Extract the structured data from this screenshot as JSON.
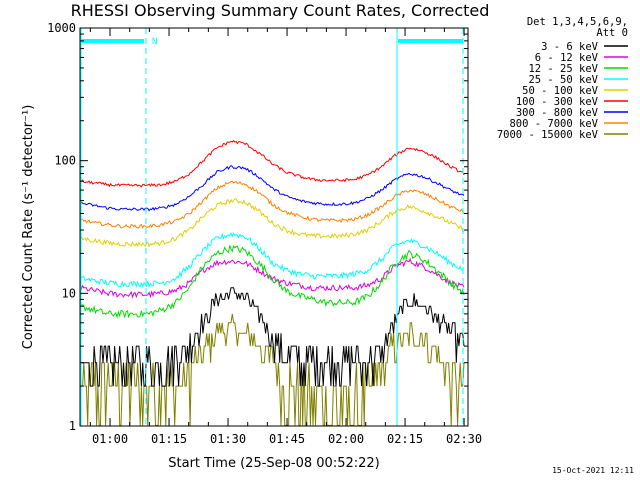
{
  "chart_data": {
    "type": "line",
    "title": "RHESSI Observing Summary Count Rates, Corrected",
    "xlabel": "Start Time (25-Sep-08 00:52:22)",
    "ylabel": "Corrected Count Rate (s⁻¹ detector⁻¹)",
    "yscale": "log",
    "ylim": [
      1,
      1000
    ],
    "xlim": [
      "00:52:22",
      "02:31:00"
    ],
    "yticks": [
      "1",
      "10",
      "100",
      "1000"
    ],
    "xticks": [
      "01:00",
      "01:15",
      "01:30",
      "01:45",
      "02:00",
      "02:15",
      "02:30"
    ],
    "header": [
      "Det 1,3,4,5,6,9,",
      "Att 0"
    ],
    "attenuator_flag": "N",
    "timestamp": "15-Oct-2021 12:11",
    "series": [
      {
        "name": "3 - 6 keV",
        "color": "#000000",
        "noise": 0.14,
        "values": [
          3,
          3,
          3,
          3,
          3,
          3,
          3,
          3.2,
          4,
          6,
          9,
          10,
          9.5,
          7,
          4.5,
          3.5,
          3,
          3,
          3,
          3,
          3,
          3,
          3.5,
          6,
          9,
          8,
          6.5,
          5,
          4
        ]
      },
      {
        "name": "6 - 12 keV",
        "color": "#e000e0",
        "noise": 0.05,
        "values": [
          11,
          10.5,
          10,
          9.8,
          9.8,
          9.8,
          10,
          10.5,
          12,
          15,
          17,
          17.5,
          17,
          15,
          13,
          12,
          11.5,
          11,
          11,
          11,
          11,
          11.5,
          13,
          16,
          17.5,
          16,
          14,
          12,
          11
        ]
      },
      {
        "name": "12 - 25 keV",
        "color": "#00dd00",
        "noise": 0.06,
        "values": [
          8,
          7.5,
          7,
          7,
          7,
          7,
          7.5,
          8.5,
          11,
          16,
          20,
          22,
          21,
          17,
          13,
          10.5,
          9.5,
          9,
          8.5,
          8.5,
          8.5,
          9.5,
          12,
          17,
          20,
          18,
          15,
          12,
          10
        ]
      },
      {
        "name": "25 - 50 keV",
        "color": "#00ffff",
        "noise": 0.05,
        "values": [
          13,
          12.5,
          12,
          11.8,
          11.8,
          11.8,
          12,
          13,
          16,
          21,
          26,
          28,
          27,
          22,
          17,
          15,
          14,
          13.5,
          13.5,
          13.5,
          14,
          15,
          18,
          23,
          25,
          23,
          20,
          17,
          15
        ]
      },
      {
        "name": "50 - 100 keV",
        "color": "#e0d000",
        "noise": 0.04,
        "values": [
          26,
          25,
          24,
          23.5,
          23.5,
          23.5,
          24,
          26,
          30,
          38,
          46,
          50,
          49,
          42,
          34,
          30,
          28,
          27,
          27,
          27,
          28,
          30,
          35,
          42,
          45,
          42,
          38,
          34,
          30
        ]
      },
      {
        "name": "100 - 300 keV",
        "color": "#ff0000",
        "noise": 0.025,
        "values": [
          70,
          68,
          66,
          65,
          65,
          65,
          66,
          70,
          80,
          100,
          125,
          140,
          135,
          115,
          95,
          82,
          76,
          72,
          71,
          71,
          72,
          78,
          90,
          110,
          125,
          118,
          105,
          90,
          80
        ]
      },
      {
        "name": "300 - 800 keV",
        "color": "#0000ff",
        "noise": 0.025,
        "values": [
          48,
          46,
          44,
          43,
          43,
          43,
          44,
          47,
          54,
          66,
          82,
          90,
          88,
          76,
          62,
          54,
          50,
          48,
          47,
          47,
          48,
          52,
          60,
          72,
          80,
          76,
          68,
          60,
          54
        ]
      },
      {
        "name": "800 - 7000 keV",
        "color": "#ff8000",
        "noise": 0.03,
        "values": [
          36,
          34,
          33,
          32,
          32,
          32,
          33,
          35,
          40,
          50,
          62,
          69,
          67,
          58,
          47,
          41,
          38,
          36,
          35.5,
          35.5,
          36,
          39,
          45,
          54,
          60,
          57,
          51,
          45,
          41
        ]
      },
      {
        "name": "7000 - 15000 keV",
        "color": "#808000",
        "noise": 0.2,
        "values": [
          2,
          2,
          2,
          2,
          2,
          2,
          2,
          1.8,
          2.5,
          3.5,
          5,
          5.5,
          5,
          4,
          3,
          2,
          1.7,
          1.5,
          1.5,
          1.5,
          1.5,
          1.7,
          2.5,
          4,
          5,
          4.5,
          3.5,
          2.5,
          1.8
        ]
      }
    ]
  }
}
